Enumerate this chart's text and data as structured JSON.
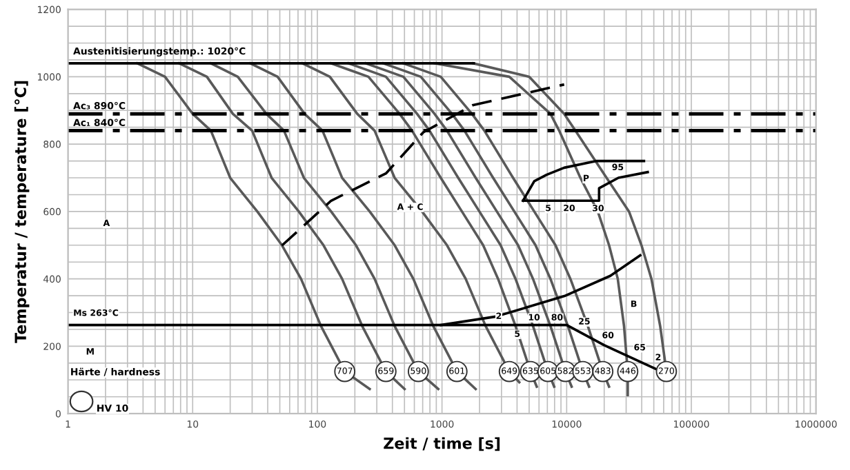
{
  "chart_data": {
    "type": "line",
    "xlabel": "Zeit / time [s]",
    "ylabel": "Temperatur / temperature [°C]",
    "log": "x",
    "xlim": [
      1,
      1000000
    ],
    "ylim": [
      0,
      1200
    ],
    "xticks": [
      1,
      {
        "value": 2,
        "label": null
      },
      {
        "value": 3,
        "label": null
      },
      {
        "value": 4,
        "label": null
      },
      {
        "value": 5,
        "label": null
      },
      {
        "value": 6,
        "label": null
      },
      {
        "value": 7,
        "label": null
      },
      {
        "value": 8,
        "label": null
      },
      {
        "value": 9,
        "label": null
      },
      10,
      {
        "value": 20,
        "label": null
      },
      {
        "value": 30,
        "label": null
      },
      {
        "value": 40,
        "label": null
      },
      {
        "value": 50,
        "label": null
      },
      {
        "value": 60,
        "label": null
      },
      {
        "value": 70,
        "label": null
      },
      {
        "value": 80,
        "label": null
      },
      {
        "value": 90,
        "label": null
      },
      100,
      {
        "value": 200,
        "label": null
      },
      {
        "value": 300,
        "label": null
      },
      {
        "value": 400,
        "label": null
      },
      {
        "value": 500,
        "label": null
      },
      {
        "value": 600,
        "label": null
      },
      {
        "value": 700,
        "label": null
      },
      {
        "value": 800,
        "label": null
      },
      {
        "value": 900,
        "label": null
      },
      1000,
      {
        "value": 2000,
        "label": null
      },
      {
        "value": 3000,
        "label": null
      },
      {
        "value": 4000,
        "label": null
      },
      {
        "value": 5000,
        "label": null
      },
      {
        "value": 6000,
        "label": null
      },
      {
        "value": 7000,
        "label": null
      },
      {
        "value": 8000,
        "label": null
      },
      {
        "value": 9000,
        "label": null
      },
      10000,
      {
        "value": 20000,
        "label": null
      },
      {
        "value": 30000,
        "label": null
      },
      {
        "value": 40000,
        "label": null
      },
      {
        "value": 50000,
        "label": null
      },
      {
        "value": 60000,
        "label": null
      },
      {
        "value": 70000,
        "label": null
      },
      {
        "value": 80000,
        "label": null
      },
      {
        "value": 90000,
        "label": null
      },
      100000,
      {
        "value": 200000,
        "label": null
      },
      {
        "value": 300000,
        "label": null
      },
      {
        "value": 400000,
        "label": null
      },
      {
        "value": 500000,
        "label": null
      },
      {
        "value": 600000,
        "label": null
      },
      {
        "value": 700000,
        "label": null
      },
      {
        "value": 800000,
        "label": null
      },
      {
        "value": 900000,
        "label": null
      },
      1000000
    ],
    "yticks": [
      0,
      {
        "value": 50,
        "label": null
      },
      {
        "value": 100,
        "label": null
      },
      {
        "value": 150,
        "label": null
      },
      200,
      {
        "value": 250,
        "label": null
      },
      {
        "value": 300,
        "label": null
      },
      {
        "value": 350,
        "label": null
      },
      400,
      {
        "value": 450,
        "label": null
      },
      {
        "value": 500,
        "label": null
      },
      {
        "value": 550,
        "label": null
      },
      600,
      {
        "value": 650,
        "label": null
      },
      {
        "value": 700,
        "label": null
      },
      {
        "value": 750,
        "label": null
      },
      800,
      {
        "value": 850,
        "label": null
      },
      {
        "value": 900,
        "label": null
      },
      {
        "value": 950,
        "label": null
      },
      1000,
      {
        "value": 1050,
        "label": null
      },
      {
        "value": 1100,
        "label": null
      },
      {
        "value": 1150,
        "label": null
      },
      1200
    ],
    "grid": true,
    "series": [
      {
        "color": "#595959",
        "x": [
          3.6,
          6.0,
          10,
          14,
          20,
          33,
          52,
          74,
          107,
          166,
          263
        ],
        "values": [
          1040,
          1000,
          890,
          840,
          700,
          600,
          500,
          400,
          260,
          125,
          73
        ]
      },
      {
        "color": "#595959",
        "x": [
          7.8,
          13,
          21,
          30,
          43,
          71,
          112,
          158,
          229,
          355,
          501
        ],
        "values": [
          1040,
          1000,
          890,
          840,
          700,
          600,
          500,
          400,
          260,
          125,
          73
        ]
      },
      {
        "color": "#595959",
        "x": [
          14,
          23,
          39,
          54,
          78,
          129,
          204,
          288,
          417,
          646,
          933
        ],
        "values": [
          1040,
          1000,
          890,
          840,
          700,
          600,
          500,
          400,
          260,
          125,
          73
        ]
      },
      {
        "color": "#595959",
        "x": [
          29,
          48,
          79,
          110,
          158,
          263,
          417,
          589,
          851,
          1318,
          1862
        ],
        "values": [
          1040,
          1000,
          890,
          840,
          700,
          600,
          500,
          400,
          260,
          125,
          73
        ]
      },
      {
        "color": "#595959",
        "x": [
          76,
          126,
          209,
          288,
          417,
          692,
          1096,
          1549,
          2239,
          3467,
          4169
        ],
        "values": [
          1040,
          1000,
          890,
          840,
          700,
          600,
          500,
          400,
          260,
          125,
          93
        ]
      },
      {
        "color": "#595959",
        "x": [
          129,
          257,
          457,
          575,
          977,
          1445,
          2138,
          2818,
          3890,
          5129,
          5754
        ],
        "values": [
          1040,
          1000,
          890,
          840,
          700,
          600,
          500,
          400,
          260,
          125,
          80
        ]
      },
      {
        "color": "#595959",
        "x": [
          178,
          355,
          631,
          794,
          1349,
          1995,
          2951,
          3890,
          5370,
          7079,
          7943
        ],
        "values": [
          1040,
          1000,
          890,
          840,
          700,
          600,
          500,
          400,
          260,
          125,
          80
        ]
      },
      {
        "color": "#595959",
        "x": [
          245,
          490,
          871,
          1096,
          1862,
          2754,
          4074,
          5370,
          7413,
          9772,
          10965
        ],
        "values": [
          1040,
          1000,
          890,
          840,
          700,
          600,
          500,
          400,
          260,
          125,
          80
        ]
      },
      {
        "color": "#595959",
        "x": [
          339,
          676,
          1202,
          1514,
          2570,
          3802,
          5623,
          7413,
          10233,
          13490,
          15136
        ],
        "values": [
          1040,
          1000,
          890,
          840,
          700,
          600,
          500,
          400,
          260,
          125,
          80
        ]
      },
      {
        "color": "#595959",
        "x": [
          490,
          977,
          1738,
          2188,
          3715,
          5495,
          8128,
          10715,
          14791,
          19498,
          21878
        ],
        "values": [
          1040,
          1000,
          890,
          840,
          700,
          600,
          500,
          400,
          260,
          125,
          80
        ]
      },
      {
        "color": "#595959",
        "x": [
          871,
          3467,
          7413,
          8710,
          12882,
          17783,
          21878,
          25704,
          28840,
          30903,
          30903
        ],
        "values": [
          1040,
          1000,
          890,
          840,
          700,
          600,
          500,
          400,
          260,
          125,
          55
        ]
      },
      {
        "color": "#595959",
        "x": [
          1778,
          5012,
          9550,
          11749,
          20893,
          31623,
          39811,
          47863,
          56234,
          63096
        ],
        "values": [
          1040,
          1000,
          890,
          840,
          700,
          600,
          500,
          400,
          260,
          125
        ]
      },
      {
        "color": "#000000",
        "x": [
          1,
          1800
        ],
        "values": [
          1040,
          1040
        ]
      },
      {
        "color": "#000000",
        "x": [
          1,
          10000,
          20000,
          53700
        ],
        "values": [
          263,
          263,
          203,
          130
        ]
      },
      {
        "color": "#000000",
        "x": [
          980,
          2700,
          9600,
          22400,
          38900
        ],
        "values": [
          263,
          288,
          349,
          409,
          470
        ]
      },
      {
        "color": "#000000",
        "line_style": "dashed",
        "x": [
          52,
          129,
          355,
          708,
          1778,
          9550
        ],
        "values": [
          499,
          632,
          713,
          835,
          916,
          977
        ]
      },
      {
        "color": "#000000",
        "x": [
          4467,
          5500,
          6900,
          9550,
          17400,
          41700
        ],
        "values": [
          632,
          690,
          709,
          730,
          750,
          750
        ]
      },
      {
        "color": "#000000",
        "x": [
          4467,
          18200,
          18200,
          26000,
          44700
        ],
        "values": [
          632,
          632,
          669,
          700,
          717
        ]
      }
    ],
    "ref_lines": [
      {
        "axis": "y",
        "value": 890,
        "label": "Ac₃ 890°C",
        "color": "#000000",
        "line_style": "dashdot"
      },
      {
        "axis": "y",
        "value": 840,
        "label": "Ac₁ 840°C",
        "color": "#000000",
        "line_style": "dashdot"
      }
    ],
    "annotations": [
      {
        "text": "Austenitisierungstemp.: 1020°C",
        "x": 1.1,
        "y": 1060
      },
      {
        "text": "P",
        "x": 13500,
        "y": 697
      },
      {
        "text": "95",
        "x": 23000,
        "y": 730
      },
      {
        "text": "30",
        "x": 16000,
        "y": 608
      },
      {
        "text": "2",
        "x": 2700,
        "y": 288
      },
      {
        "text": "10",
        "x": 4900,
        "y": 284
      },
      {
        "text": "80",
        "x": 7500,
        "y": 284
      },
      {
        "text": "25",
        "x": 12400,
        "y": 272
      },
      {
        "text": "5",
        "x": 3800,
        "y": 235
      },
      {
        "text": "60",
        "x": 19200,
        "y": 231
      },
      {
        "text": "65",
        "x": 34500,
        "y": 195
      },
      {
        "text": "707",
        "x": 166,
        "y": 125
      },
      {
        "text": "659",
        "x": 355,
        "y": 125
      },
      {
        "text": "590",
        "x": 646,
        "y": 125
      },
      {
        "text": "601",
        "x": 1318,
        "y": 125
      },
      {
        "text": "649",
        "x": 3467,
        "y": 125
      },
      {
        "text": "635",
        "x": 5129,
        "y": 125
      },
      {
        "text": "605",
        "x": 7079,
        "y": 125
      },
      {
        "text": "582",
        "x": 9772,
        "y": 125
      },
      {
        "text": "553",
        "x": 13490,
        "y": 125
      },
      {
        "text": "483",
        "x": 19498,
        "y": 125
      },
      {
        "text": "446",
        "x": 30903,
        "y": 125
      },
      {
        "text": "270",
        "x": 63096,
        "y": 125
      },
      "Ms 263°C",
      "A",
      "A + C",
      "B",
      "M",
      "5",
      "20",
      "2",
      "Härte / hardness",
      "HV 10"
    ]
  }
}
